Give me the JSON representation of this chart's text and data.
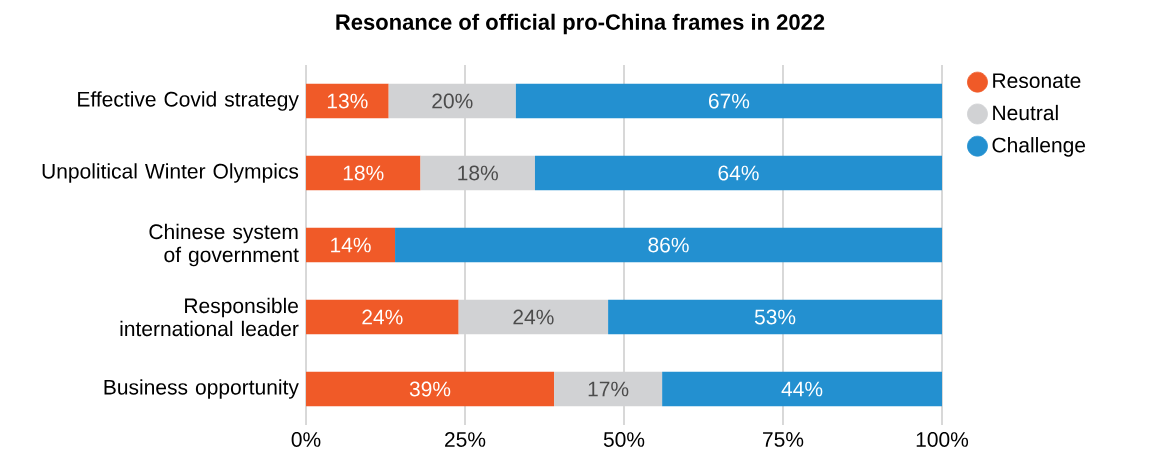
{
  "chart_data": {
    "type": "bar",
    "orientation": "horizontal",
    "stacked": true,
    "title": "Resonance of official pro-China frames in 2022",
    "categories": [
      "Effective Covid strategy",
      "Unpolitical Winter Olympics",
      "Chinese system of government",
      "Responsible international leader",
      "Business opportunity"
    ],
    "series": [
      {
        "name": "Resonate",
        "color": "#f05a28",
        "values": [
          13,
          18,
          14,
          24,
          39
        ],
        "value_labels": [
          "13%",
          "18%",
          "14%",
          "24%",
          "39%"
        ]
      },
      {
        "name": "Neutral",
        "color": "#d1d2d4",
        "values": [
          20,
          18,
          null,
          23.5,
          17
        ],
        "value_labels": [
          "20%",
          "18%",
          null,
          "24%",
          "17%"
        ]
      },
      {
        "name": "Challenge",
        "color": "#2390d0",
        "values": [
          67,
          64,
          86,
          52.5,
          44
        ],
        "value_labels": [
          "67%",
          "64%",
          "86%",
          "53%",
          "44%"
        ]
      }
    ],
    "xlim": [
      0,
      100
    ],
    "xticks": [
      {
        "value": 0,
        "label": "0%"
      },
      {
        "value": 25,
        "label": "25%"
      },
      {
        "value": 50,
        "label": "50%"
      },
      {
        "value": 75,
        "label": "75%"
      },
      {
        "value": 100,
        "label": "100%"
      }
    ],
    "grid": "x",
    "legend": "right",
    "marker": "circle"
  }
}
